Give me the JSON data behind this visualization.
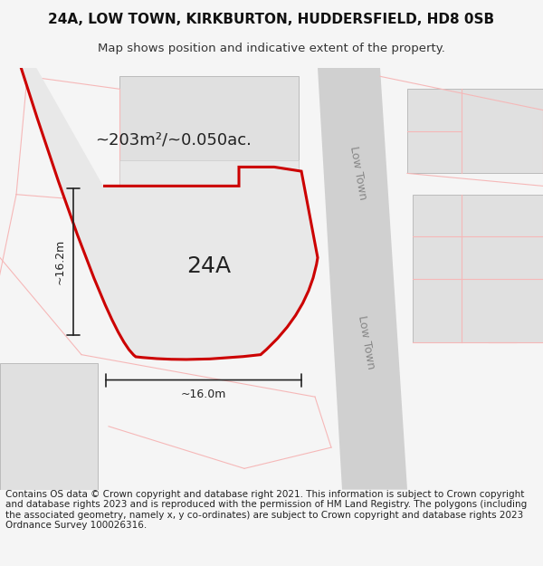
{
  "title_line1": "24A, LOW TOWN, KIRKBURTON, HUDDERSFIELD, HD8 0SB",
  "title_line2": "Map shows position and indicative extent of the property.",
  "footer_text": "Contains OS data © Crown copyright and database right 2021. This information is subject to Crown copyright and database rights 2023 and is reproduced with the permission of HM Land Registry. The polygons (including the associated geometry, namely x, y co-ordinates) are subject to Crown copyright and database rights 2023 Ordnance Survey 100026316.",
  "area_label": "~203m²/~0.050ac.",
  "label_24A": "24A",
  "dim_width": "~16.0m",
  "dim_height": "~16.2m",
  "road_label": "Low Town",
  "bg_color": "#f5f5f5",
  "map_bg": "#ffffff",
  "plot_fill": "#e8e8e8",
  "plot_edge_color": "#cc0000",
  "road_color": "#d0d0d0",
  "light_red": "#f5b8b8",
  "building_fill": "#e0e0e0",
  "dim_color": "#222222",
  "title_fontsize": 11,
  "subtitle_fontsize": 9.5,
  "footer_fontsize": 7.5,
  "label_fontsize": 14,
  "area_fontsize": 13,
  "road_label_fontsize": 9
}
